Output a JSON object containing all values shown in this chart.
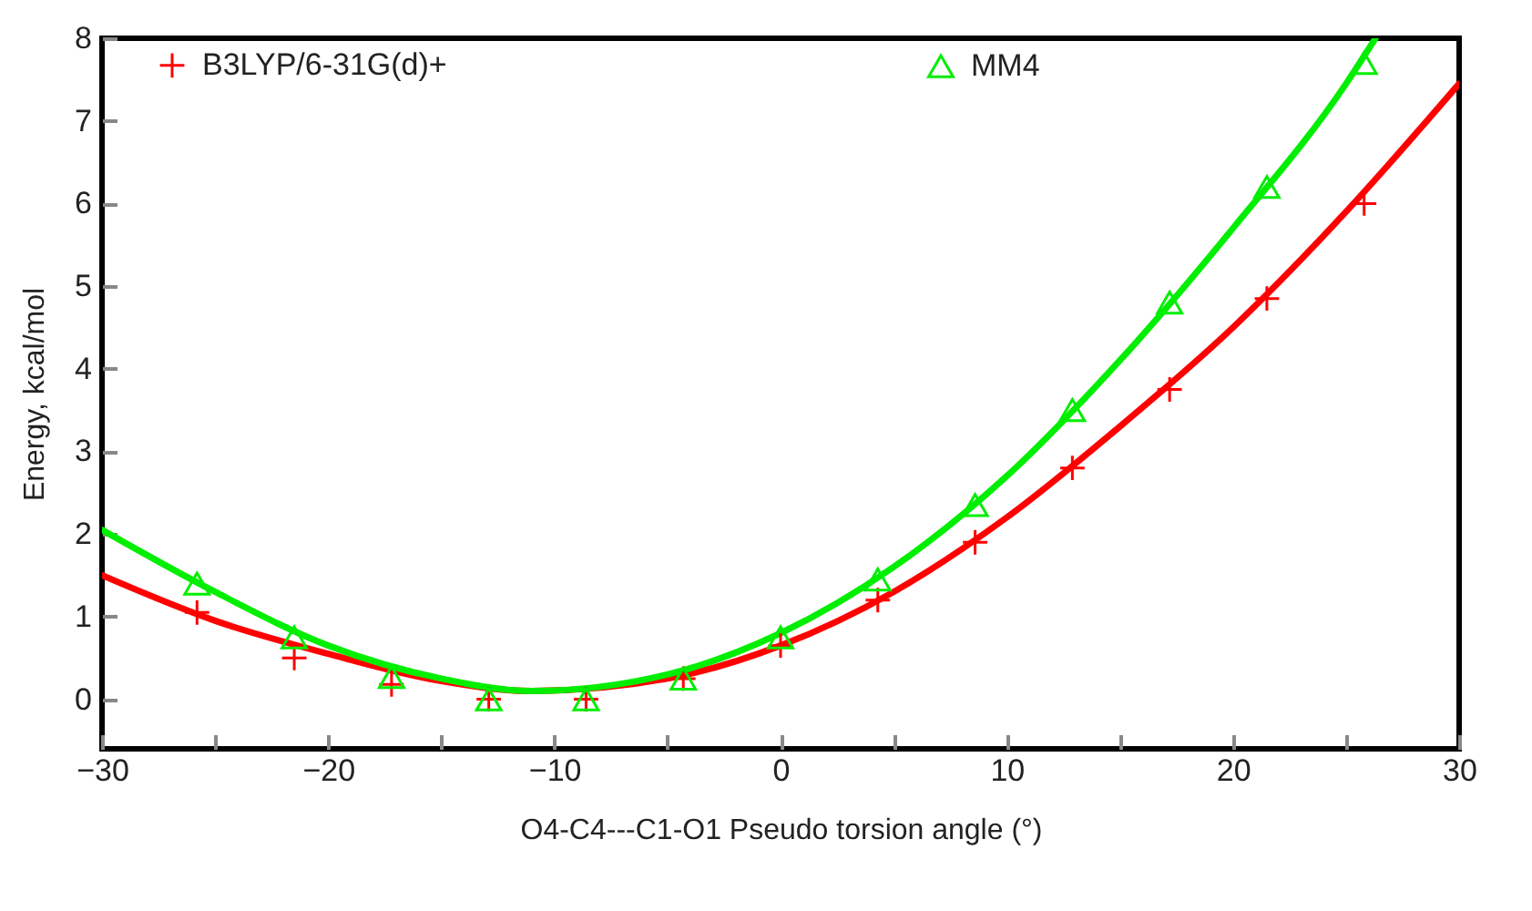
{
  "chart_data": {
    "type": "scatter",
    "xlabel": "O4-C4---C1-O1 Pseudo torsion angle (°)",
    "ylabel": "Energy, kcal/mol",
    "xlim": [
      -30,
      30
    ],
    "xticks": [
      -30,
      {
        "value": -25,
        "label": null
      },
      -20,
      {
        "value": -15,
        "label": null
      },
      -10,
      {
        "value": -5,
        "label": null
      },
      0,
      {
        "value": 5,
        "label": null
      },
      10,
      {
        "value": 15,
        "label": null
      },
      20,
      {
        "value": 25,
        "label": null
      },
      30
    ],
    "ylim": [
      -0.6,
      8
    ],
    "yticks": [
      0,
      1,
      2,
      3,
      4,
      5,
      6,
      7,
      8
    ],
    "grid": false,
    "legend": "top",
    "series": [
      {
        "name": "B3LYP/6-31G(d)+",
        "marker": "cross",
        "color": "#ff0000",
        "x": [
          -25.8,
          -21.5,
          -17.2,
          -12.9,
          -8.6,
          -4.3,
          0,
          4.3,
          8.6,
          12.9,
          17.2,
          21.5,
          25.8
        ],
        "values": [
          1.05,
          0.5,
          0.18,
          0.0,
          0.0,
          0.25,
          0.65,
          1.2,
          1.9,
          2.8,
          3.75,
          4.85,
          6.0
        ]
      },
      {
        "name": "MM4",
        "marker": "triangle",
        "color": "#00ee00",
        "x": [
          -25.8,
          -21.5,
          -17.2,
          -12.9,
          -8.6,
          -4.3,
          0,
          4.3,
          8.6,
          12.9,
          17.2,
          21.5,
          25.8
        ],
        "values": [
          1.4,
          0.75,
          0.27,
          0.0,
          0.0,
          0.25,
          0.75,
          1.45,
          2.35,
          3.5,
          4.8,
          6.2,
          7.7
        ]
      },
      {
        "type": "line",
        "color": "#ff0000",
        "x": [
          -30,
          -25,
          -20,
          -15,
          -11,
          -5,
          0,
          5,
          10,
          15,
          20,
          25,
          30
        ],
        "values": [
          1.5,
          0.95,
          0.55,
          0.22,
          0.1,
          0.25,
          0.65,
          1.3,
          2.2,
          3.3,
          4.5,
          5.9,
          7.45
        ]
      },
      {
        "type": "line",
        "color": "#00ee00",
        "x": [
          -30,
          -25,
          -20,
          -15,
          -11,
          -5,
          0,
          5,
          10,
          15,
          20,
          25,
          26.3
        ],
        "values": [
          2.05,
          1.3,
          0.65,
          0.25,
          0.1,
          0.3,
          0.8,
          1.6,
          2.7,
          4.1,
          5.7,
          7.45,
          8
        ]
      }
    ]
  }
}
